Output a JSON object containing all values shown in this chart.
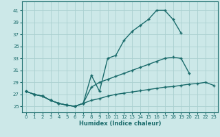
{
  "xlabel": "Humidex (Indice chaleur)",
  "bg_color": "#cce8e8",
  "grid_color": "#aad0d0",
  "line_color": "#1a6b6b",
  "xlim": [
    -0.5,
    23.5
  ],
  "ylim": [
    24.0,
    42.5
  ],
  "yticks": [
    25,
    27,
    29,
    31,
    33,
    35,
    37,
    39,
    41
  ],
  "xticks": [
    0,
    1,
    2,
    3,
    4,
    5,
    6,
    7,
    8,
    9,
    10,
    11,
    12,
    13,
    14,
    15,
    16,
    17,
    18,
    19,
    20,
    21,
    22,
    23
  ],
  "curve1_x": [
    0,
    1,
    2,
    3,
    4,
    5,
    6,
    7,
    8,
    9,
    10,
    11,
    12,
    13,
    14,
    15,
    16,
    17,
    18,
    19
  ],
  "curve1_y": [
    27.5,
    27.0,
    26.7,
    26.0,
    25.5,
    25.2,
    25.0,
    25.5,
    30.2,
    27.5,
    33.0,
    33.5,
    36.0,
    37.5,
    38.5,
    39.5,
    41.0,
    41.0,
    39.5,
    37.2
  ],
  "curve2_x": [
    0,
    1,
    2,
    3,
    4,
    5,
    6,
    7,
    8,
    9,
    10,
    11,
    12,
    13,
    14,
    15,
    16,
    17,
    18,
    19,
    20
  ],
  "curve2_y": [
    27.5,
    27.0,
    26.7,
    26.0,
    25.5,
    25.2,
    25.0,
    25.5,
    28.2,
    29.0,
    29.5,
    30.0,
    30.5,
    31.0,
    31.5,
    32.0,
    32.5,
    33.0,
    33.2,
    33.0,
    30.5
  ],
  "curve3_x": [
    0,
    1,
    2,
    3,
    4,
    5,
    6,
    7,
    8,
    9,
    10,
    11,
    12,
    13,
    14,
    15,
    16,
    17,
    18,
    19,
    20,
    21,
    22,
    23
  ],
  "curve3_y": [
    27.5,
    27.0,
    26.7,
    26.0,
    25.5,
    25.2,
    25.0,
    25.5,
    26.0,
    26.3,
    26.7,
    27.0,
    27.2,
    27.4,
    27.6,
    27.8,
    28.0,
    28.2,
    28.3,
    28.5,
    28.7,
    28.8,
    29.0,
    28.5
  ]
}
